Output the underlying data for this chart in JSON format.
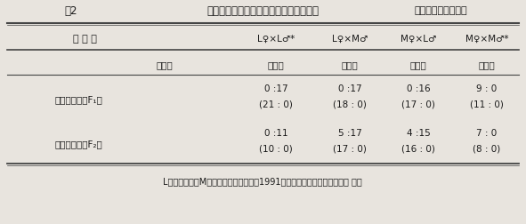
{
  "title_part1": "表2",
  "title_part2": "ナガチャコガネ雌飛翔筋二型の遺伝模式",
  "title_part3": "（）内は雄の個体数",
  "col_header0": "試 験 区",
  "col_header1": "L♀×L♂*",
  "col_header2": "L♀×M♂",
  "col_header3": "M♀×L♂",
  "col_header4": "M♀×M♂*",
  "subheader_left": "飛翔筋",
  "subheader_vals": [
    "有：無",
    "有：無",
    "有：無",
    "有：無"
  ],
  "row1_label": "雑種第一代（F₁）",
  "row1_data": [
    [
      "0 :17",
      "0 :17",
      "0 :16",
      "9 : 0"
    ],
    [
      "(21 : 0)",
      "(18 : 0)",
      "(17 : 0)",
      "(11 : 0)"
    ]
  ],
  "row2_label": "雑種第二代（F₂）",
  "row2_data": [
    [
      "0 :11",
      "5 :17",
      "4 :15",
      "7 : 0"
    ],
    [
      "(10 : 0)",
      "(17 : 0)",
      "(16 : 0)",
      "(8 : 0)"
    ]
  ],
  "footnote": "L：無筋系統，M：有筋系統，いずれも1991年採集の個体群より作出，＊ 対照",
  "bg_color": "#e8e4de",
  "text_color": "#1a1a1a",
  "line_color": "#444444"
}
